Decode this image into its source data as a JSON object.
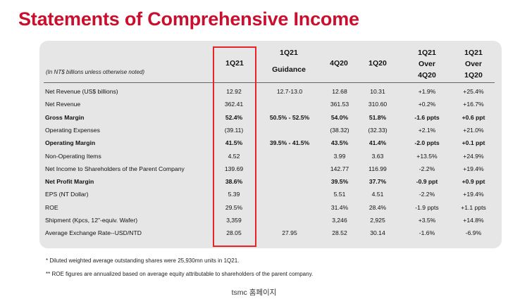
{
  "title": "Statements of Comprehensive Income",
  "unit_note": "(In NT$ billions unless otherwise noted)",
  "columns": {
    "q1_21": "1Q21",
    "guidance_1": "1Q21",
    "guidance_2": "Guidance",
    "q4_20": "4Q20",
    "q1_20": "1Q20",
    "over_4q_1": "1Q21",
    "over_4q_2": "Over",
    "over_4q_3": "4Q20",
    "over_1q_1": "1Q21",
    "over_1q_2": "Over",
    "over_1q_3": "1Q20"
  },
  "rows": [
    {
      "label": "Net Revenue (US$ billions)",
      "q1_21": "12.92",
      "guidance": "12.7-13.0",
      "q4_20": "12.68",
      "q1_20": "10.31",
      "over_4q20": "+1.9%",
      "over_1q20": "+25.4%"
    },
    {
      "label": "Net Revenue",
      "q1_21": "362.41",
      "guidance": "",
      "q4_20": "361.53",
      "q1_20": "310.60",
      "over_4q20": "+0.2%",
      "over_1q20": "+16.7%"
    },
    {
      "label": "Gross Margin",
      "q1_21": "52.4%",
      "guidance": "50.5% - 52.5%",
      "q4_20": "54.0%",
      "q1_20": "51.8%",
      "over_4q20": "-1.6 ppts",
      "over_1q20": "+0.6 ppt"
    },
    {
      "label": "Operating Expenses",
      "q1_21": "(39.11)",
      "guidance": "",
      "q4_20": "(38.32)",
      "q1_20": "(32.33)",
      "over_4q20": "+2.1%",
      "over_1q20": "+21.0%"
    },
    {
      "label": "Operating Margin",
      "q1_21": "41.5%",
      "guidance": "39.5% - 41.5%",
      "q4_20": "43.5%",
      "q1_20": "41.4%",
      "over_4q20": "-2.0 ppts",
      "over_1q20": "+0.1 ppt"
    },
    {
      "label": "Non-Operating Items",
      "q1_21": "4.52",
      "guidance": "",
      "q4_20": "3.99",
      "q1_20": "3.63",
      "over_4q20": "+13.5%",
      "over_1q20": "+24.9%"
    },
    {
      "label": "Net Income to Shareholders of the Parent Company",
      "q1_21": "139.69",
      "guidance": "",
      "q4_20": "142.77",
      "q1_20": "116.99",
      "over_4q20": "-2.2%",
      "over_1q20": "+19.4%"
    },
    {
      "label": "Net Profit Margin",
      "q1_21": "38.6%",
      "guidance": "",
      "q4_20": "39.5%",
      "q1_20": "37.7%",
      "over_4q20": "-0.9 ppt",
      "over_1q20": "+0.9 ppt"
    },
    {
      "label": "EPS (NT Dollar)",
      "q1_21": "5.39",
      "guidance": "",
      "q4_20": "5.51",
      "q1_20": "4.51",
      "over_4q20": "-2.2%",
      "over_1q20": "+19.4%"
    },
    {
      "label": "ROE",
      "q1_21": "29.5%",
      "guidance": "",
      "q4_20": "31.4%",
      "q1_20": "28.4%",
      "over_4q20": "-1.9 ppts",
      "over_1q20": "+1.1 ppts"
    },
    {
      "label": "Shipment (Kpcs, 12\"-equiv. Wafer)",
      "q1_21": "3,359",
      "guidance": "",
      "q4_20": "3,246",
      "q1_20": "2,925",
      "over_4q20": "+3.5%",
      "over_1q20": "+14.8%"
    },
    {
      "label": "Average Exchange Rate--USD/NTD",
      "q1_21": "28.05",
      "guidance": "27.95",
      "q4_20": "28.52",
      "q1_20": "30.14",
      "over_4q20": "-1.6%",
      "over_1q20": "-6.9%"
    }
  ],
  "bold_rows": [
    2,
    4,
    7
  ],
  "footnotes": [
    "*   Diluted weighted average outstanding shares were 25,930mn units in 1Q21.",
    "**  ROE figures are annualized based on average equity attributable to shareholders of the parent company."
  ],
  "caption": "tsmc 홈페이지",
  "colors": {
    "title": "#c8102e",
    "highlight": "#e8232a",
    "panel": "#e6e6e6"
  }
}
